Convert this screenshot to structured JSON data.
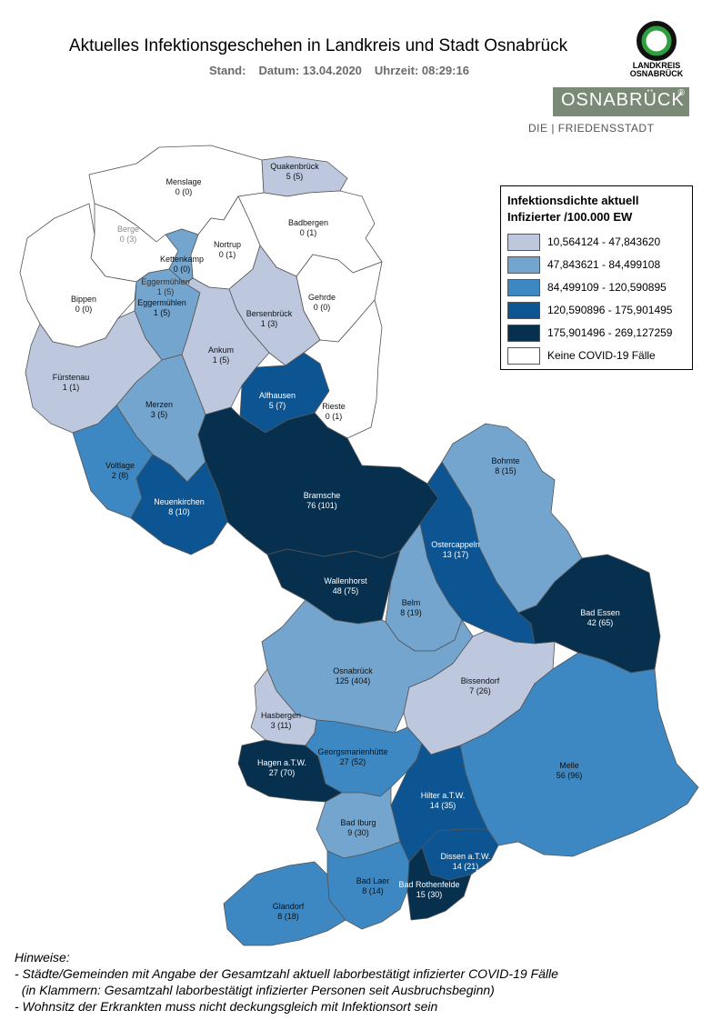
{
  "header": {
    "title": "Aktuelles Infektionsgeschehen in Landkreis und Stadt Osnabrück",
    "stand_label": "Stand:",
    "datum": "Datum: 13.04.2020",
    "uhrzeit": "Uhrzeit: 08:29:16"
  },
  "logos": {
    "landkreis_line1": "LANDKREIS",
    "landkreis_line2": "OSNABRÜCK",
    "stadt": "OSNABRÜCK",
    "stadt_mark": "®",
    "stadt_sub": "DIE | FRIEDENSSTADT"
  },
  "legend": {
    "title_line1": "Infektionsdichte aktuell",
    "title_line2": "Infizierter /100.000 EW",
    "classes": [
      {
        "label": "10,564124 - 47,843620",
        "color": "#bdc8df"
      },
      {
        "label": "47,843621 - 84,499108",
        "color": "#73a5cf"
      },
      {
        "label": "84,499109 - 120,590895",
        "color": "#3d88c2"
      },
      {
        "label": "120,590896 - 175,901495",
        "color": "#0c5592"
      },
      {
        "label": "175,901496 - 269,127259",
        "color": "#07304f"
      },
      {
        "label": "Keine COVID-19 Fälle",
        "color": "#ffffff"
      }
    ]
  },
  "municipalities": [
    {
      "key": "menslage",
      "name": "Menslage",
      "cases": "0 (0)"
    },
    {
      "key": "quakenbrueck",
      "name": "Quakenbrück",
      "cases": "5 (5)"
    },
    {
      "key": "berge",
      "name": "Berge",
      "cases": "0 (3)"
    },
    {
      "key": "badbergen",
      "name": "Badbergen",
      "cases": "0 (1)"
    },
    {
      "key": "nortrup",
      "name": "Nortrup",
      "cases": "0 (1)"
    },
    {
      "key": "kettenkamp",
      "name": "Kettenkamp",
      "cases": "0 (0)"
    },
    {
      "key": "eggermuehlen_a",
      "name": "Eggermühlen",
      "cases": "1 (5)"
    },
    {
      "key": "eggermuehlen_b",
      "name": "Eggermühlen",
      "cases": "1 (5)"
    },
    {
      "key": "bippen",
      "name": "Bippen",
      "cases": "0 (0)"
    },
    {
      "key": "gehrde",
      "name": "Gehrde",
      "cases": "0 (0)"
    },
    {
      "key": "bersenbrueck",
      "name": "Bersenbrück",
      "cases": "1 (3)"
    },
    {
      "key": "ankum",
      "name": "Ankum",
      "cases": "1 (5)"
    },
    {
      "key": "fuerstenau",
      "name": "Fürstenau",
      "cases": "1 (1)"
    },
    {
      "key": "alfhausen",
      "name": "Alfhausen",
      "cases": "5 (7)"
    },
    {
      "key": "merzen",
      "name": "Merzen",
      "cases": "3 (5)"
    },
    {
      "key": "rieste",
      "name": "Rieste",
      "cases": "0 (1)"
    },
    {
      "key": "voltlage",
      "name": "Voltlage",
      "cases": "2 (8)"
    },
    {
      "key": "bohmte",
      "name": "Bohmte",
      "cases": "8 (15)"
    },
    {
      "key": "bramsche",
      "name": "Bramsche",
      "cases": "76 (101)"
    },
    {
      "key": "neuenkirchen",
      "name": "Neuenkirchen",
      "cases": "8 (10)"
    },
    {
      "key": "ostercappeln",
      "name": "Ostercappeln",
      "cases": "13 (17)"
    },
    {
      "key": "wallenhorst",
      "name": "Wallenhorst",
      "cases": "48 (75)"
    },
    {
      "key": "belm",
      "name": "Belm",
      "cases": "8 (19)"
    },
    {
      "key": "badessen",
      "name": "Bad Essen",
      "cases": "42 (65)"
    },
    {
      "key": "osnabrueck",
      "name": "Osnabrück",
      "cases": "125 (404)"
    },
    {
      "key": "bissendorf",
      "name": "Bissendorf",
      "cases": "7 (26)"
    },
    {
      "key": "hasbergen",
      "name": "Hasbergen",
      "cases": "3 (11)"
    },
    {
      "key": "hagen",
      "name": "Hagen a.T.W.",
      "cases": "27 (70)"
    },
    {
      "key": "georgsmarienhuette",
      "name": "Georgsmarienhütte",
      "cases": "27 (52)"
    },
    {
      "key": "melle",
      "name": "Melle",
      "cases": "56 (96)"
    },
    {
      "key": "hilter",
      "name": "Hilter a.T.W.",
      "cases": "14 (35)"
    },
    {
      "key": "badiburg",
      "name": "Bad Iburg",
      "cases": "9 (30)"
    },
    {
      "key": "dissen",
      "name": "Dissen a.T.W.",
      "cases": "14 (21)"
    },
    {
      "key": "badlaer",
      "name": "Bad Laer",
      "cases": "8 (14)"
    },
    {
      "key": "badrothenfelde",
      "name": "Bad Rothenfelde",
      "cases": "15 (30)"
    },
    {
      "key": "glandorf",
      "name": "Glandorf",
      "cases": "8 (18)"
    }
  ],
  "notes": [
    "Hinweise:",
    "- Städte/Gemeinden mit Angabe der Gesamtzahl aktuell laborbestätigt infizierter COVID-19 Fälle",
    "  (in Klammern: Gesamtzahl laborbestätigt infizierter Personen seit Ausbruchsbeginn)",
    "- Wohnsitz der Erkrankten muss nicht deckungsgleich mit Infektionsort sein"
  ]
}
